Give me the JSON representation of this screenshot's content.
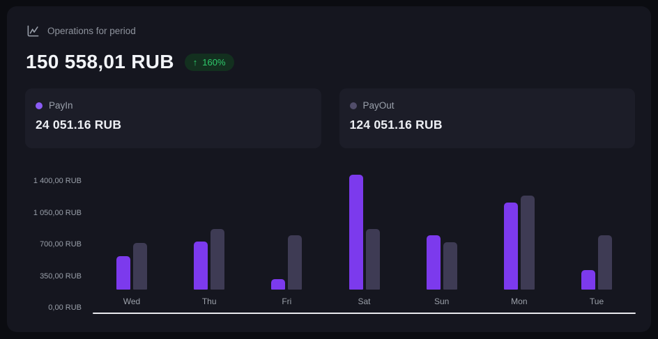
{
  "header": {
    "title": "Operations for period",
    "total": "150 558,01 RUB",
    "change_arrow": "↑",
    "change": "160%"
  },
  "summary_cards": [
    {
      "label": "PayIn",
      "amount": "24 051.16 RUB",
      "dot_color": "#8b5cf6"
    },
    {
      "label": "PayOut",
      "amount": "124 051.16 RUB",
      "dot_color": "#514d6a"
    }
  ],
  "chart_data": {
    "type": "bar",
    "categories": [
      "Wed",
      "Thu",
      "Fri",
      "Sat",
      "Sun",
      "Mon",
      "Tue"
    ],
    "series": [
      {
        "name": "PayIn",
        "color": "#7c3aed",
        "values": [
          370,
          530,
          115,
          1270,
          600,
          960,
          215
        ]
      },
      {
        "name": "PayOut",
        "color": "#3e3b54",
        "values": [
          515,
          670,
          600,
          670,
          525,
          1040,
          600
        ]
      }
    ],
    "y_ticks": [
      "1 400,00 RUB",
      "1 050,00 RUB",
      "700,00 RUB",
      "350,00 RUB",
      "0,00 RUB"
    ],
    "ylim": [
      0,
      1400
    ],
    "xlabel": "",
    "ylabel": "",
    "grid": false,
    "legend_position": "none"
  },
  "colors": {
    "page_bg": "#0b0c11",
    "panel_bg": "#15161f",
    "card_bg": "#1c1d28",
    "accent_purple": "#7c3aed",
    "muted_bar": "#3e3b54",
    "badge_bg": "#13301f",
    "badge_text": "#2fcb6c",
    "text_primary": "#f2f4f8",
    "text_muted": "#9aa0ab"
  }
}
